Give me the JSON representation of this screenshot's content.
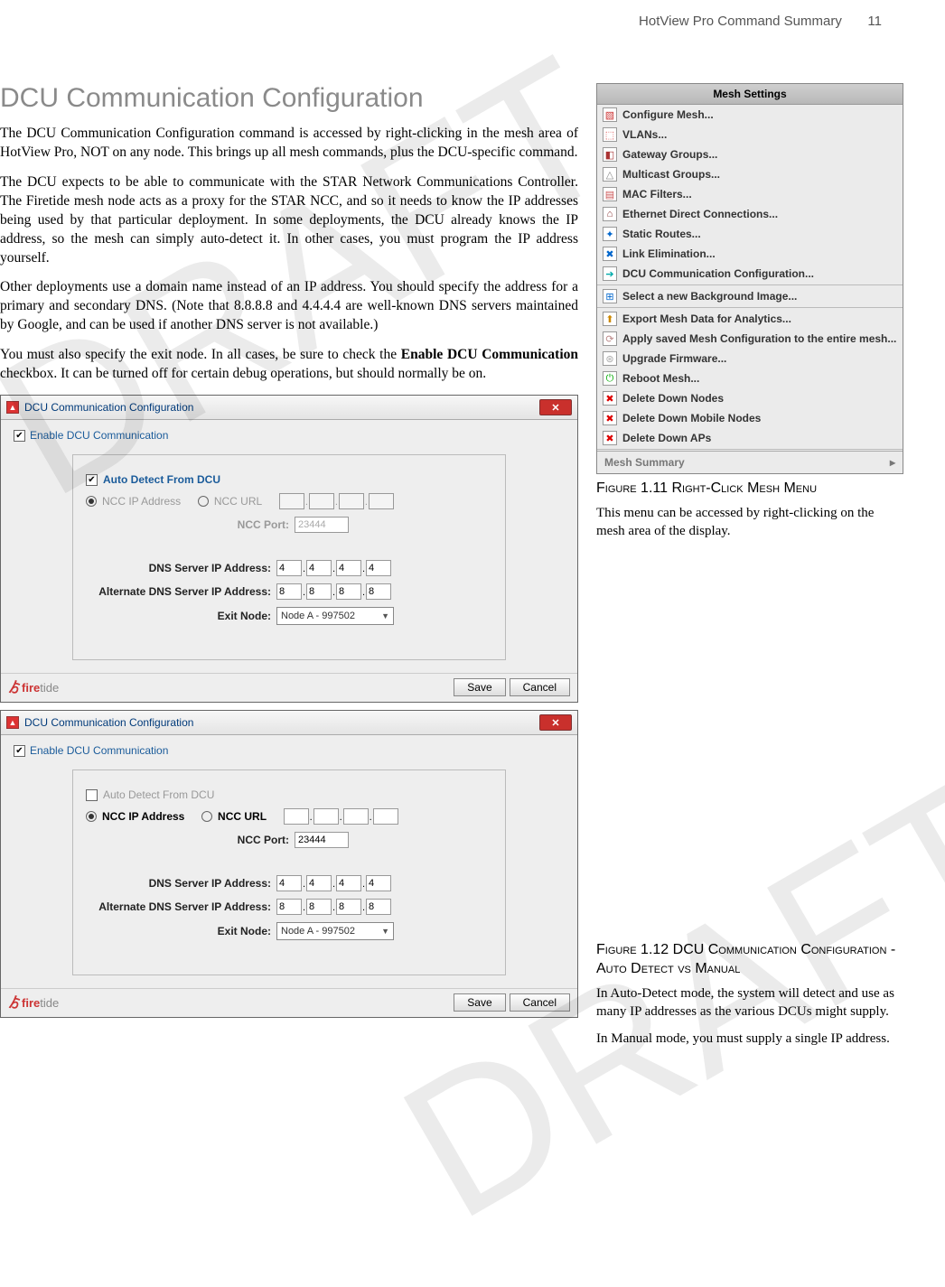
{
  "header": {
    "title": "HotView Pro Command Summary",
    "page": "11"
  },
  "watermark": "DRAFT",
  "main_title": "DCU Communication Configuration",
  "paragraphs": {
    "p1": "The DCU Communication Configuration command is accessed by right-clicking in the mesh area of HotView Pro, NOT on any node. This brings up all mesh commands, plus the DCU-specific command.",
    "p2": "The DCU expects to be able to communicate with the STAR Network Communications Controller. The Firetide mesh node acts as a proxy for the STAR NCC, and so it needs to know the IP addresses being used by that particular deployment. In some deployments, the DCU already knows the IP address, so the mesh can simply auto-detect it. In other cases, you must program the IP address yourself.",
    "p3": "Other deployments use a domain name instead of an IP address. You should specify the address for a primary and secondary DNS. (Note that 8.8.8.8 and 4.4.4.4 are well-known DNS servers maintained by Google, and can be used if another DNS server is not available.)",
    "p4a": "You must also specify the exit node. In all cases, be sure to check the ",
    "p4b": "Enable DCU Communication",
    "p4c": " checkbox. It can be turned off for certain debug operations, but should normally be on."
  },
  "menu": {
    "title": "Mesh Settings",
    "items": [
      {
        "label": "Configure Mesh...",
        "icon_bg": "#fff",
        "icon_txt": "▧",
        "icon_color": "#c33"
      },
      {
        "label": "VLANs...",
        "icon_bg": "#fff",
        "icon_txt": "⬚",
        "icon_color": "#d55"
      },
      {
        "label": "Gateway Groups...",
        "icon_bg": "#fff",
        "icon_txt": "◧",
        "icon_color": "#a33"
      },
      {
        "label": "Multicast Groups...",
        "icon_bg": "#fff",
        "icon_txt": "△",
        "icon_color": "#888"
      },
      {
        "label": "MAC Filters...",
        "icon_bg": "#fff",
        "icon_txt": "▤",
        "icon_color": "#c55"
      },
      {
        "label": "Ethernet Direct Connections...",
        "icon_bg": "#fff",
        "icon_txt": "⌂",
        "icon_color": "#833"
      },
      {
        "label": "Static Routes...",
        "icon_bg": "#fff",
        "icon_txt": "✦",
        "icon_color": "#06c"
      },
      {
        "label": "Link Elimination...",
        "icon_bg": "#fff",
        "icon_txt": "✖",
        "icon_color": "#06c"
      },
      {
        "label": "DCU Communication Configuration...",
        "icon_bg": "#fff",
        "icon_txt": "➔",
        "icon_color": "#0aa"
      }
    ],
    "items2": [
      {
        "label": "Select a new Background Image...",
        "icon_txt": "⊞",
        "icon_color": "#06c"
      }
    ],
    "items3": [
      {
        "label": "Export Mesh Data for Analytics...",
        "icon_txt": "⬆",
        "icon_color": "#c80"
      },
      {
        "label": "Apply saved Mesh Configuration to the entire mesh...",
        "icon_txt": "⟳",
        "icon_color": "#b88"
      },
      {
        "label": "Upgrade Firmware...",
        "icon_txt": "⊛",
        "icon_color": "#aaa"
      },
      {
        "label": "Reboot Mesh...",
        "icon_txt": "⏻",
        "icon_color": "#0a0"
      },
      {
        "label": "Delete Down Nodes",
        "icon_txt": "✖",
        "icon_color": "#d00"
      },
      {
        "label": "Delete Down Mobile Nodes",
        "icon_txt": "✖",
        "icon_color": "#d00"
      },
      {
        "label": "Delete Down APs",
        "icon_txt": "✖",
        "icon_color": "#d00"
      }
    ],
    "summary": "Mesh Summary"
  },
  "fig11": {
    "caption": "Figure 1.11 Right-Click Mesh Menu",
    "body": "This menu can be accessed by right-clicking on the mesh area of the display."
  },
  "fig12": {
    "caption": "Figure 1.12 DCU Communication Configuration - Auto Detect vs Manual",
    "body1": "In Auto-Detect mode, the system will detect and use as many IP addresses as the various DCUs might supply.",
    "body2": "In Manual mode, you must supply a single IP address."
  },
  "dialog": {
    "title": "DCU Communication Configuration",
    "enable": "Enable DCU Communication",
    "auto_detect": "Auto Detect From DCU",
    "ncc_ip": "NCC IP Address",
    "ncc_url": "NCC URL",
    "ncc_port_lbl": "NCC Port:",
    "ncc_port_val": "23444",
    "dns_lbl": "DNS Server IP Address:",
    "dns": [
      "4",
      "4",
      "4",
      "4"
    ],
    "adns_lbl": "Alternate DNS Server IP Address:",
    "adns": [
      "8",
      "8",
      "8",
      "8"
    ],
    "exit_lbl": "Exit Node:",
    "exit_val": "Node A - 997502",
    "brand_fire": "fire",
    "brand_tide": "tide",
    "save": "Save",
    "cancel": "Cancel"
  }
}
